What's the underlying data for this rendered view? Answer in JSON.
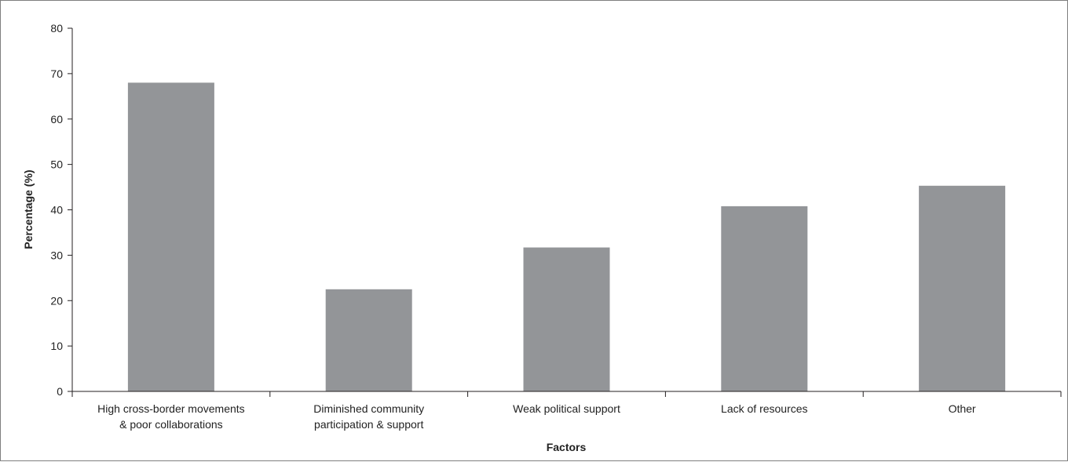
{
  "chart_data": {
    "type": "bar",
    "categories": [
      [
        "High cross-border movements",
        "& poor collaborations"
      ],
      [
        "Diminished community",
        "participation & support"
      ],
      [
        "Weak political support"
      ],
      [
        "Lack of resources"
      ],
      [
        "Other"
      ]
    ],
    "values": [
      68,
      22.5,
      31.7,
      40.8,
      45.3
    ],
    "title": "",
    "xlabel": "Factors",
    "ylabel": "Percentage (%)",
    "ylim": [
      0,
      80
    ],
    "yticks": [
      0,
      10,
      20,
      30,
      40,
      50,
      60,
      70,
      80
    ],
    "grid": false,
    "legend": "none",
    "bar_color": "#939598",
    "axis_color": "#231f20"
  }
}
